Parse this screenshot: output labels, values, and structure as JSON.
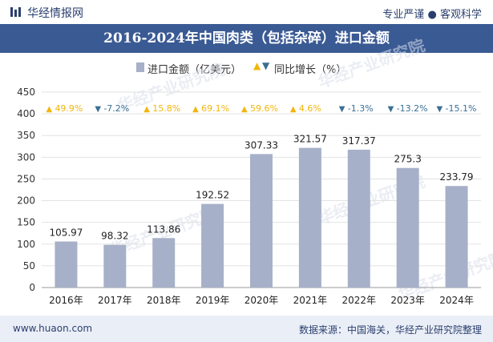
{
  "header": {
    "brand": "华经情报网",
    "tagline": "专业严谨 ● 客观科学"
  },
  "title": "2016-2024年中国肉类（包括杂碎）进口金额",
  "legend": {
    "bar_label": "进口金额（亿美元）",
    "growth_label": "同比增长（%）"
  },
  "footer": {
    "website": "www.huaon.com",
    "source": "数据来源：中国海关，华经产业研究院整理"
  },
  "watermark": "华经产业研究院",
  "colors": {
    "bar": "#a6b0c8",
    "up": "#f2b50c",
    "down": "#3a6f94",
    "title_bg": "#3a5a94"
  },
  "chart_data": {
    "type": "bar",
    "categories": [
      "2016年",
      "2017年",
      "2018年",
      "2019年",
      "2020年",
      "2021年",
      "2022年",
      "2023年",
      "2024年"
    ],
    "series": [
      {
        "name": "进口金额（亿美元）",
        "values": [
          105.97,
          98.32,
          113.86,
          192.52,
          307.33,
          321.57,
          317.37,
          275.3,
          233.79
        ]
      },
      {
        "name": "同比增长（%）",
        "values": [
          49.9,
          -7.2,
          15.8,
          69.1,
          59.6,
          4.6,
          -1.3,
          -13.2,
          -15.1
        ]
      }
    ],
    "value_labels": [
      "105.97",
      "98.32",
      "113.86",
      "192.52",
      "307.33",
      "321.57",
      "317.37",
      "275.3",
      "233.79"
    ],
    "growth_labels": [
      "49.9%",
      "-7.2%",
      "15.8%",
      "69.1%",
      "59.6%",
      "4.6%",
      "-1.3%",
      "-13.2%",
      "-15.1%"
    ],
    "yticks": [
      "0",
      "50",
      "100",
      "150",
      "200",
      "250",
      "300",
      "350",
      "400",
      "450"
    ],
    "ylim": [
      0,
      450
    ],
    "grid": true
  }
}
